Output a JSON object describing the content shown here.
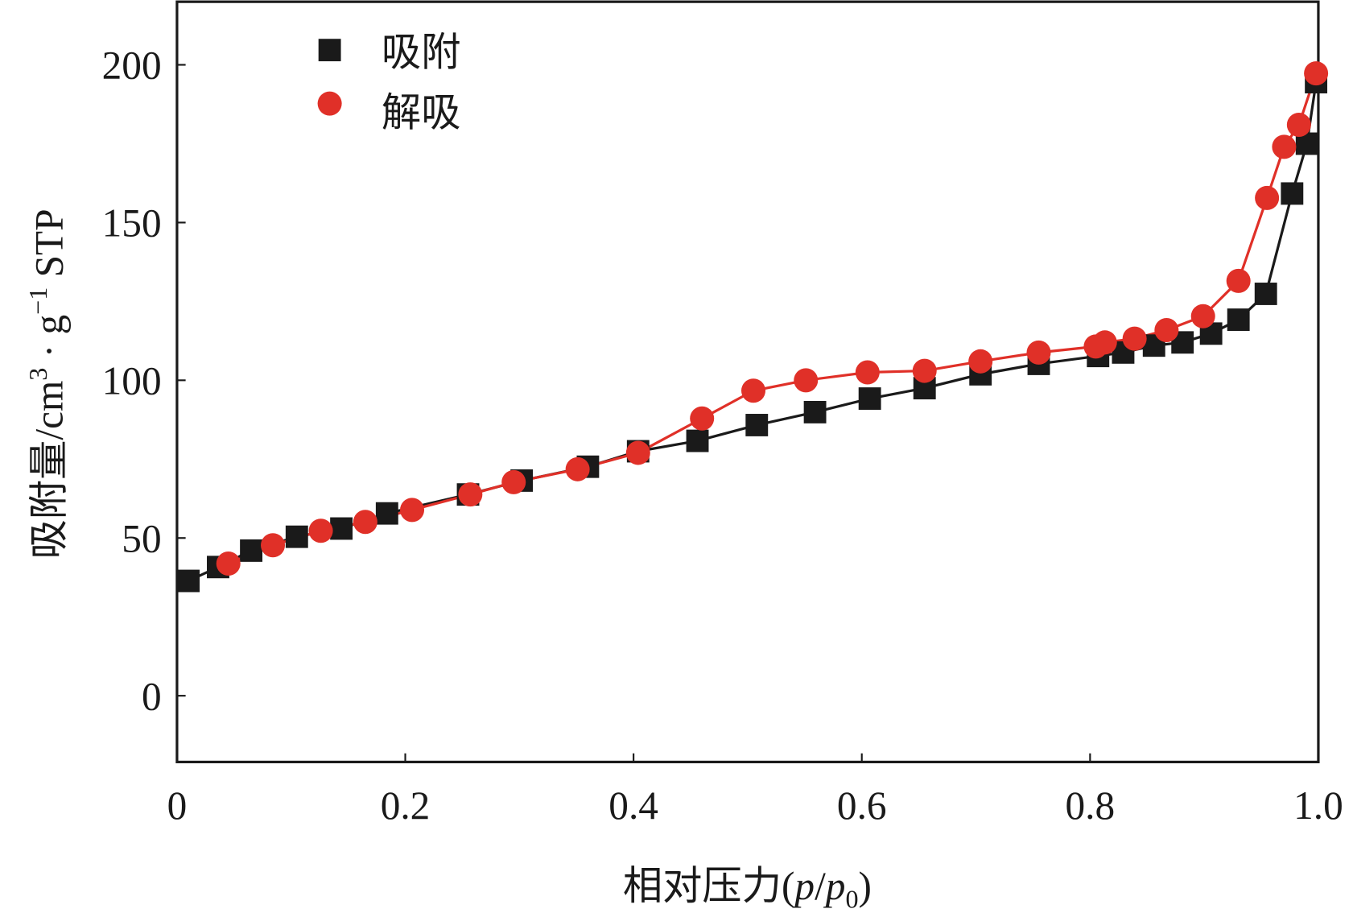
{
  "chart_data": {
    "type": "scatter",
    "title": "",
    "xlabel": "相对压力(p/p0)",
    "xlabel_parts": {
      "main": "相对压力(",
      "p": "p",
      "slash": "/",
      "p0": "p",
      "sub": "0",
      "close": ")"
    },
    "ylabel": "吸附量/cm³ · g⁻¹ STP",
    "ylabel_parts": {
      "main": "吸附量/cm",
      "sup3": "3",
      "dot": " · g",
      "supm1": "−1",
      "tail": " STP"
    },
    "xlim": [
      0,
      1.0
    ],
    "ylim": [
      -21,
      220
    ],
    "xticks": [
      0,
      0.2,
      0.4,
      0.6,
      0.8,
      1.0
    ],
    "xtick_labels": [
      "0",
      "0.2",
      "0.4",
      "0.6",
      "0.8",
      "1.0"
    ],
    "yticks": [
      0,
      50,
      100,
      150,
      200
    ],
    "ytick_labels": [
      "0",
      "50",
      "100",
      "150",
      "200"
    ],
    "grid": false,
    "legend_position": "top-left",
    "series": [
      {
        "name": "吸附",
        "marker": "square",
        "color": "#1a1a1a",
        "x": [
          0.01,
          0.036,
          0.065,
          0.105,
          0.144,
          0.184,
          0.255,
          0.302,
          0.36,
          0.404,
          0.456,
          0.508,
          0.559,
          0.607,
          0.655,
          0.704,
          0.755,
          0.807,
          0.829,
          0.856,
          0.881,
          0.906,
          0.93,
          0.954,
          0.977,
          0.99,
          0.998
        ],
        "y": [
          36.4,
          40.8,
          46,
          50.4,
          53,
          57.8,
          63.8,
          68.2,
          72.6,
          77.5,
          80.8,
          85.8,
          89.9,
          94.2,
          97.5,
          101.9,
          105.2,
          107.7,
          108.8,
          111,
          112,
          114.8,
          119.2,
          127.4,
          159.2,
          175,
          194.5
        ]
      },
      {
        "name": "解吸",
        "marker": "circle",
        "color": "#e03028",
        "x": [
          0.045,
          0.084,
          0.126,
          0.165,
          0.206,
          0.257,
          0.295,
          0.351,
          0.404,
          0.46,
          0.505,
          0.551,
          0.605,
          0.655,
          0.704,
          0.755,
          0.805,
          0.813,
          0.839,
          0.867,
          0.899,
          0.93,
          0.955,
          0.97,
          0.983,
          0.998
        ],
        "y": [
          41.9,
          47.7,
          52.3,
          55.1,
          58.9,
          63.8,
          67.7,
          71.8,
          77,
          87.9,
          96.7,
          100,
          102.5,
          103,
          106,
          108.8,
          110.7,
          112,
          113.2,
          115.9,
          120.3,
          131.5,
          157.8,
          174,
          181,
          197.3
        ]
      }
    ]
  }
}
